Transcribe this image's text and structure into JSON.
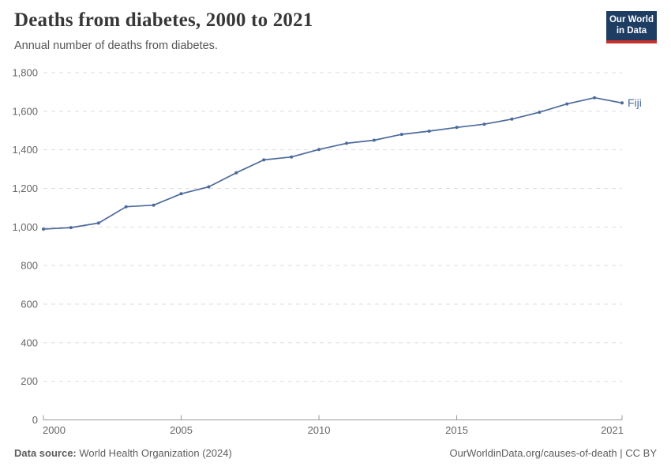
{
  "header": {
    "title": "Deaths from diabetes, 2000 to 2021",
    "subtitle": "Annual number of deaths from diabetes."
  },
  "logo": {
    "line1": "Our World",
    "line2": "in Data",
    "bg_color": "#1d3d63",
    "accent_color": "#c7302b"
  },
  "chart_data": {
    "type": "line",
    "title": "Deaths from diabetes, 2000 to 2021",
    "x": [
      2000,
      2001,
      2002,
      2003,
      2004,
      2005,
      2006,
      2007,
      2008,
      2009,
      2010,
      2011,
      2012,
      2013,
      2014,
      2015,
      2016,
      2017,
      2018,
      2019,
      2020,
      2021
    ],
    "series": [
      {
        "name": "Fiji",
        "color": "#4c6a9c",
        "values": [
          989,
          997,
          1020,
          1105,
          1113,
          1172,
          1208,
          1281,
          1348,
          1363,
          1402,
          1434,
          1450,
          1480,
          1497,
          1516,
          1533,
          1559,
          1595,
          1638,
          1670,
          1643
        ]
      }
    ],
    "ylim": [
      0,
      1800
    ],
    "yticks": [
      0,
      200,
      400,
      600,
      800,
      1000,
      1200,
      1400,
      1600,
      1800
    ],
    "xticks": [
      2000,
      2005,
      2010,
      2015,
      2021
    ],
    "grid": "horizontal-dashed",
    "legend_position": "end-of-line-label",
    "end_label": "Fiji",
    "xlabel": "",
    "ylabel": ""
  },
  "footer": {
    "datasource_label": "Data source:",
    "datasource_value": " World Health Organization (2024)",
    "credit": "OurWorldinData.org/causes-of-death | CC BY"
  },
  "colors": {
    "line": "#4c6a9c",
    "axis_text": "#666666",
    "gridline": "#dddddd",
    "axis_line": "#999999",
    "title": "#373737",
    "subtitle": "#555555",
    "footer_text": "#5e5e5e"
  }
}
